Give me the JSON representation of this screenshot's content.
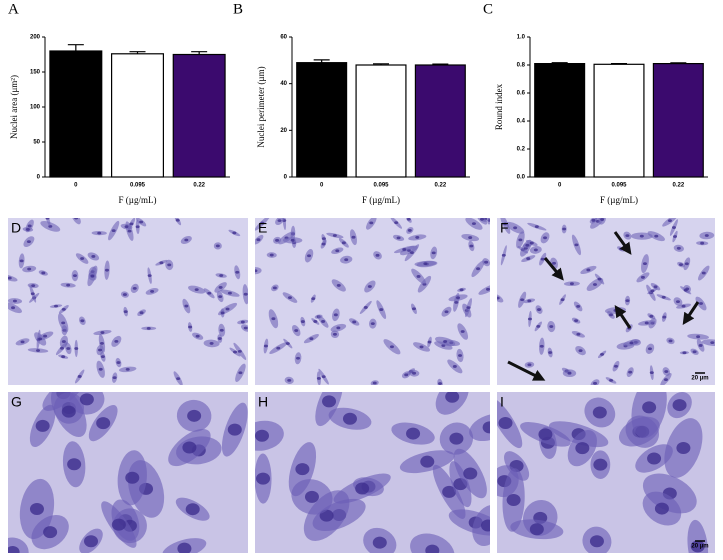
{
  "chart_data": [
    {
      "type": "bar",
      "panel": "A",
      "y_label": "Nuclei area (μm²)",
      "x_label": "F (µg/mL)",
      "categories": [
        "0",
        "0.095",
        "0.22"
      ],
      "values": [
        180,
        176,
        175
      ],
      "errors": [
        9,
        3,
        4
      ],
      "colors": [
        "#000000",
        "#ffffff",
        "#3b0a6e"
      ],
      "ylim": [
        0,
        200
      ],
      "yticks": [
        0,
        50,
        100,
        150,
        200
      ]
    },
    {
      "type": "bar",
      "panel": "B",
      "y_label": "Nuclei perimeter (µm)",
      "x_label": "F (µg/mL)",
      "categories": [
        "0",
        "0.095",
        "0.22"
      ],
      "values": [
        49,
        48,
        48
      ],
      "errors": [
        1.2,
        0.5,
        0.4
      ],
      "colors": [
        "#000000",
        "#ffffff",
        "#3b0a6e"
      ],
      "ylim": [
        0,
        60
      ],
      "yticks": [
        0,
        20,
        40,
        60
      ]
    },
    {
      "type": "bar",
      "panel": "C",
      "y_label": "Round index",
      "x_label": "F (µg/mL)",
      "categories": [
        "0",
        "0.095",
        "0.22"
      ],
      "values": [
        0.81,
        0.805,
        0.81
      ],
      "errors": [
        0.006,
        0.005,
        0.005
      ],
      "colors": [
        "#000000",
        "#ffffff",
        "#3b0a6e"
      ],
      "ylim": [
        0,
        1
      ],
      "yticks": [
        {
          "value": 0,
          "label": "0.0"
        },
        0.2,
        0.4,
        0.6,
        0.8,
        {
          "value": 1,
          "label": "1.0"
        }
      ]
    }
  ],
  "micrographs": {
    "labels": [
      "D",
      "E",
      "F",
      "G",
      "H",
      "I"
    ],
    "scale_bar": "20 µm"
  }
}
